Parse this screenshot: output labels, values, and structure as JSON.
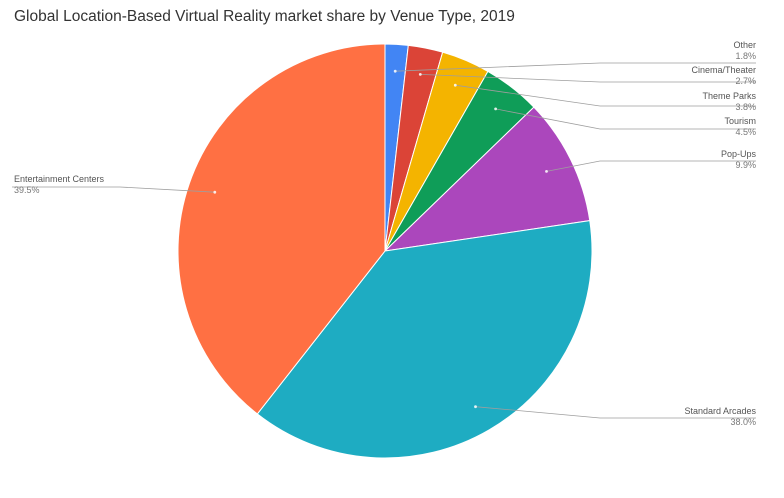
{
  "chart_data": {
    "type": "pie",
    "title": "Global Location-Based Virtual Reality market share by Venue Type, 2019",
    "start_angle_deg": 0,
    "direction": "clockwise",
    "slices": [
      {
        "name": "Other",
        "value": 1.8,
        "value_label": "1.8%",
        "color": "#4285F4"
      },
      {
        "name": "Cinema/Theater",
        "value": 2.7,
        "value_label": "2.7%",
        "color": "#DB4437"
      },
      {
        "name": "Theme Parks",
        "value": 3.8,
        "value_label": "3.8%",
        "color": "#F4B400"
      },
      {
        "name": "Tourism",
        "value": 4.5,
        "value_label": "4.5%",
        "color": "#0F9D58"
      },
      {
        "name": "Pop-Ups",
        "value": 9.9,
        "value_label": "9.9%",
        "color": "#AB47BC"
      },
      {
        "name": "Standard Arcades",
        "value": 38.0,
        "value_label": "38.0%",
        "color": "#1EACC2"
      },
      {
        "name": "Entertainment Centers",
        "value": 39.5,
        "value_label": "39.5%",
        "color": "#FF7043"
      }
    ],
    "legend": "none",
    "labels": "outside with leader lines"
  }
}
